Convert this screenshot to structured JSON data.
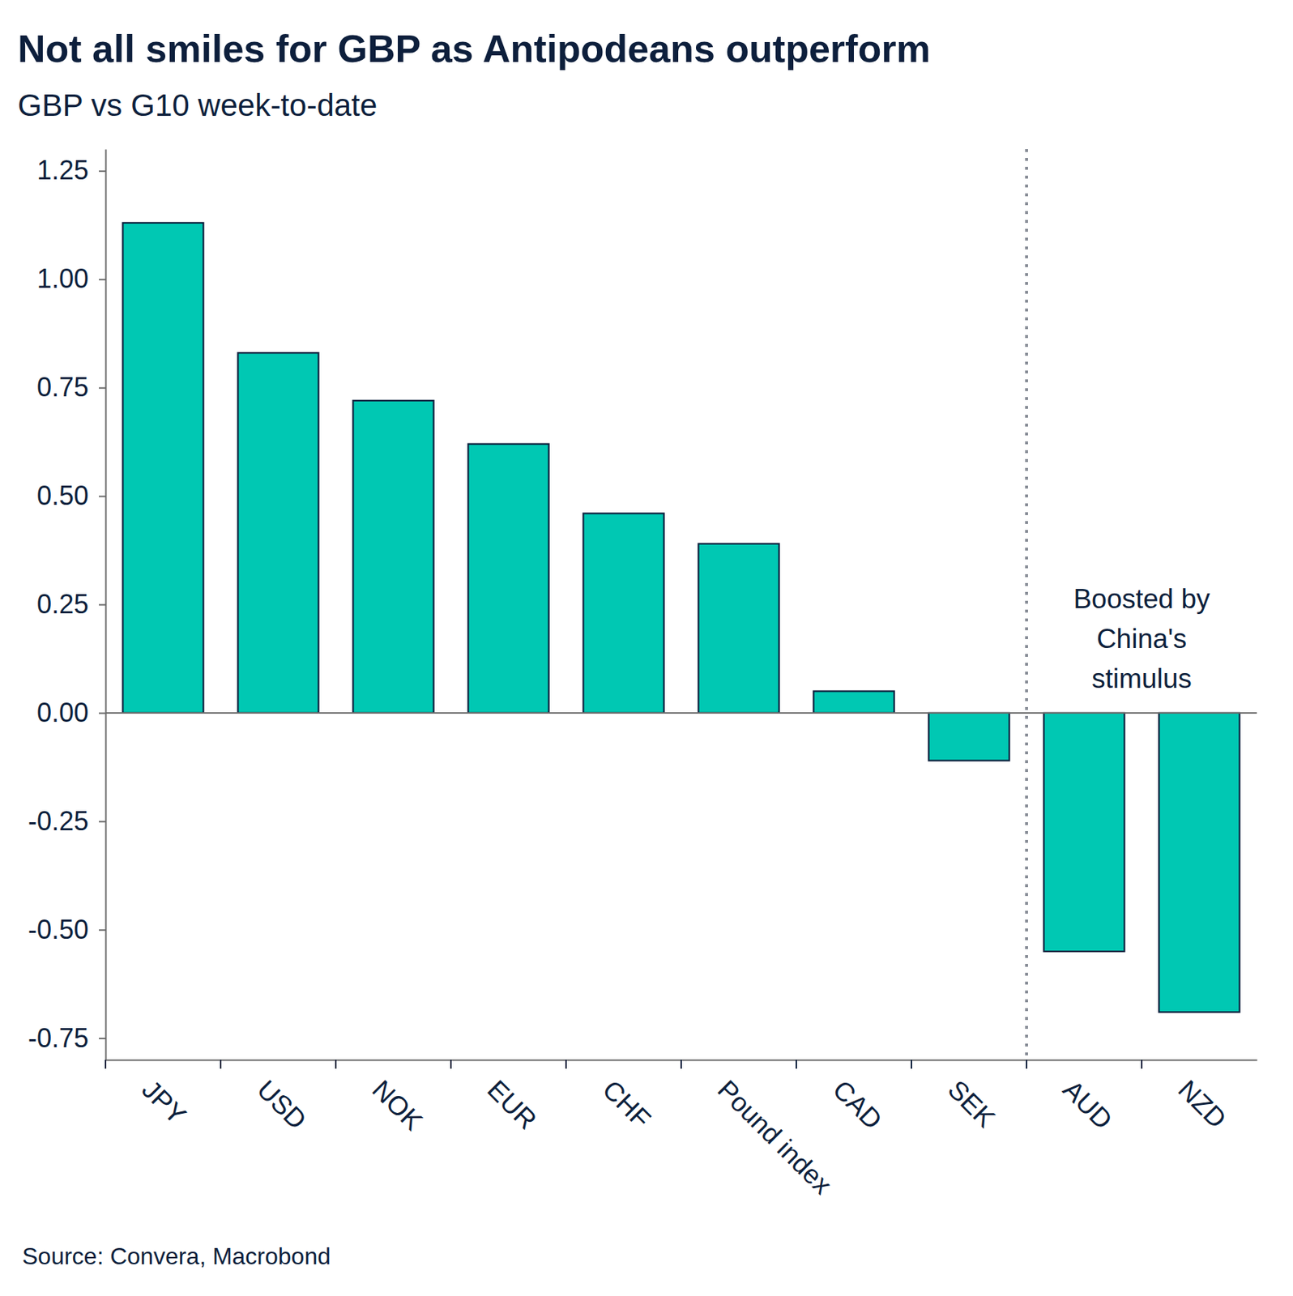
{
  "chart_data": {
    "type": "bar",
    "title": "Not all smiles for GBP as Antipodeans outperform",
    "subtitle": "GBP vs G10 week-to-date",
    "source": "Source: Convera, Macrobond",
    "annotation": "Boosted by\nChina's\nstimulus",
    "categories": [
      "JPY",
      "USD",
      "NOK",
      "EUR",
      "CHF",
      "Pound index",
      "CAD",
      "SEK",
      "AUD",
      "NZD"
    ],
    "values": [
      1.13,
      0.83,
      0.72,
      0.62,
      0.46,
      0.39,
      0.05,
      -0.11,
      -0.55,
      -0.69
    ],
    "color": "#00c8b3",
    "ylim": [
      -0.8,
      1.3
    ],
    "yticks": [
      1.25,
      {
        "value": 1,
        "label": "1.00"
      },
      0.75,
      {
        "value": 0.5,
        "label": "0.50"
      },
      0.25,
      {
        "value": 0,
        "label": "0.00"
      },
      -0.25,
      {
        "value": -0.5,
        "label": "-0.50"
      },
      -0.75
    ],
    "grid": false
  }
}
